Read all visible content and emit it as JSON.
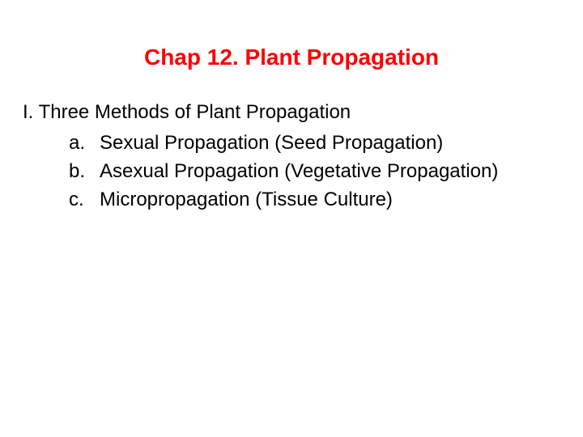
{
  "slide": {
    "title": "Chap 12. Plant Propagation",
    "title_color": "#ff0000",
    "title_fontsize": 28,
    "section_heading": "I. Three Methods of Plant Propagation",
    "section_fontsize": 24,
    "section_color": "#000000",
    "list_fontsize": 24,
    "list_color": "#000000",
    "items": [
      {
        "marker": "a.",
        "text": "Sexual Propagation (Seed Propagation)"
      },
      {
        "marker": "b.",
        "text": "Asexual Propagation (Vegetative Propagation)"
      },
      {
        "marker": "c.",
        "text": "Micropropagation (Tissue Culture)"
      }
    ],
    "background_color": "#ffffff"
  }
}
